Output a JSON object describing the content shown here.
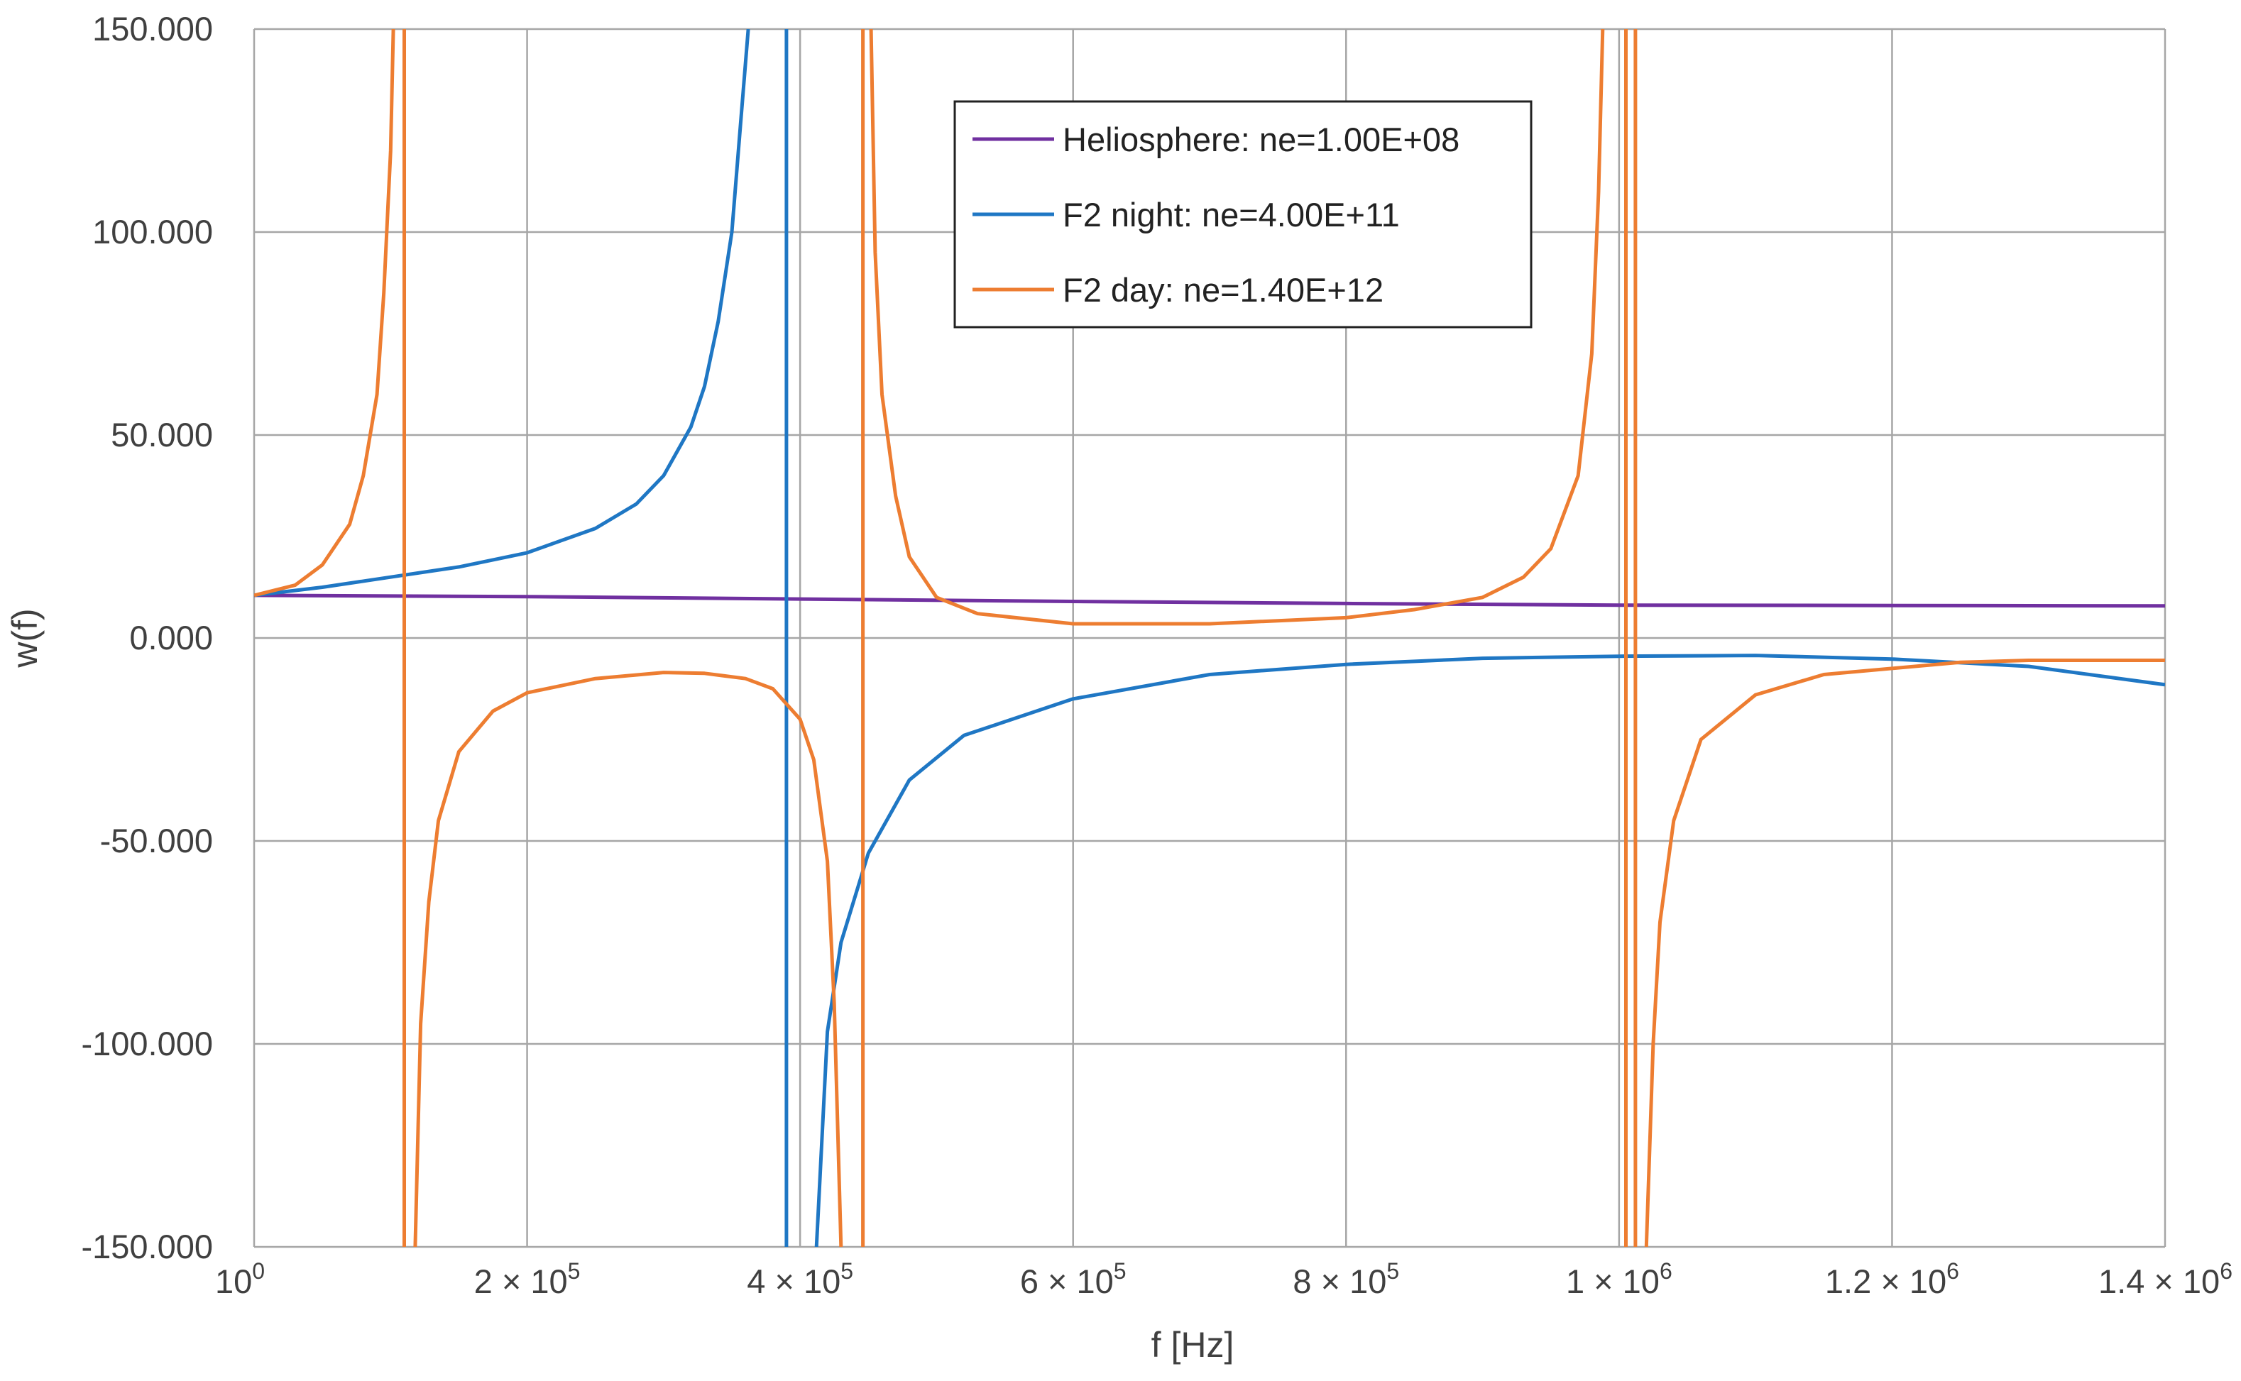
{
  "chart_data": {
    "type": "line",
    "title": "",
    "xlabel": "f [Hz]",
    "ylabel": "w(f)",
    "xlim": [
      1,
      1400000
    ],
    "ylim": [
      -150,
      150
    ],
    "grid": true,
    "legend_position": "top-center",
    "x_tick_labels": [
      {
        "value": 1,
        "base": "10",
        "exp": "0"
      },
      {
        "value": 200000,
        "base": "2 × 10",
        "exp": "5"
      },
      {
        "value": 400000,
        "base": "4 × 10",
        "exp": "5"
      },
      {
        "value": 600000,
        "base": "6 × 10",
        "exp": "5"
      },
      {
        "value": 800000,
        "base": "8 × 10",
        "exp": "5"
      },
      {
        "value": 1000000,
        "base": "1 × 10",
        "exp": "6"
      },
      {
        "value": 1200000,
        "base": "1.2 × 10",
        "exp": "6"
      },
      {
        "value": 1400000,
        "base": "1.4 × 10",
        "exp": "6"
      }
    ],
    "y_tick_labels": [
      {
        "value": 150,
        "label": "150.000"
      },
      {
        "value": 100,
        "label": "100.000"
      },
      {
        "value": 50,
        "label": "50.000"
      },
      {
        "value": 0,
        "label": "0.000"
      },
      {
        "value": -50,
        "label": "-50.000"
      },
      {
        "value": -100,
        "label": "-100.000"
      },
      {
        "value": -150,
        "label": "-150.000"
      }
    ],
    "series": [
      {
        "name": "Heliosphere: ne=1.00E+08",
        "color": "#7030a0",
        "segments": [
          [
            [
              1,
              10.5
            ],
            [
              200000,
              10.2
            ],
            [
              400000,
              9.6
            ],
            [
              600000,
              9.0
            ],
            [
              800000,
              8.5
            ],
            [
              1000000,
              8.1
            ],
            [
              1200000,
              8.0
            ],
            [
              1400000,
              7.9
            ]
          ]
        ]
      },
      {
        "name": "F2 night: ne=4.00E+11",
        "color": "#1f77c4",
        "segments": [
          [
            [
              1,
              10.5
            ],
            [
              50000,
              12.5
            ],
            [
              100000,
              15
            ],
            [
              150000,
              17.5
            ],
            [
              200000,
              21
            ],
            [
              250000,
              27
            ],
            [
              280000,
              33
            ],
            [
              300000,
              40
            ],
            [
              320000,
              52
            ],
            [
              330000,
              62
            ],
            [
              340000,
              78
            ],
            [
              350000,
              100
            ],
            [
              356000,
              125
            ],
            [
              362000,
              150
            ]
          ],
          [
            [
              390000,
              150
            ],
            [
              390000,
              -150
            ]
          ],
          [
            [
              412000,
              -150
            ],
            [
              420000,
              -97
            ],
            [
              430000,
              -75
            ],
            [
              450000,
              -53
            ],
            [
              480000,
              -35
            ],
            [
              520000,
              -24
            ],
            [
              600000,
              -15
            ],
            [
              700000,
              -9
            ],
            [
              800000,
              -6.5
            ],
            [
              900000,
              -5
            ],
            [
              1000000,
              -4.5
            ],
            [
              1100000,
              -4.3
            ],
            [
              1200000,
              -5.2
            ],
            [
              1300000,
              -7
            ],
            [
              1400000,
              -11.5
            ]
          ]
        ]
      },
      {
        "name": "F2 day: ne=1.40E+12",
        "color": "#ed7d31",
        "segments": [
          [
            [
              1,
              10.5
            ],
            [
              30000,
              13
            ],
            [
              50000,
              18
            ],
            [
              70000,
              28
            ],
            [
              80000,
              40
            ],
            [
              90000,
              60
            ],
            [
              95000,
              85
            ],
            [
              100000,
              120
            ],
            [
              102000,
              150
            ]
          ],
          [
            [
              110000,
              150
            ],
            [
              110000,
              -150
            ]
          ],
          [
            [
              118000,
              -150
            ],
            [
              122000,
              -95
            ],
            [
              128000,
              -65
            ],
            [
              135000,
              -45
            ],
            [
              150000,
              -28
            ],
            [
              175000,
              -18
            ],
            [
              200000,
              -13.5
            ],
            [
              250000,
              -10
            ],
            [
              300000,
              -8.5
            ],
            [
              330000,
              -8.7
            ],
            [
              360000,
              -10
            ],
            [
              380000,
              -12.5
            ],
            [
              400000,
              -20
            ],
            [
              410000,
              -30
            ],
            [
              420000,
              -55
            ],
            [
              425000,
              -90
            ],
            [
              430000,
              -150
            ]
          ],
          [
            [
              446000,
              150
            ],
            [
              446000,
              -150
            ]
          ],
          [
            [
              452000,
              150
            ],
            [
              455000,
              95
            ],
            [
              460000,
              60
            ],
            [
              470000,
              35
            ],
            [
              480000,
              20
            ],
            [
              500000,
              10
            ],
            [
              530000,
              6
            ],
            [
              600000,
              3.5
            ],
            [
              700000,
              3.5
            ],
            [
              800000,
              5
            ],
            [
              850000,
              7
            ],
            [
              900000,
              10
            ],
            [
              930000,
              15
            ],
            [
              950000,
              22
            ],
            [
              970000,
              40
            ],
            [
              980000,
              70
            ],
            [
              985000,
              110
            ],
            [
              988000,
              150
            ]
          ],
          [
            [
              1005000,
              150
            ],
            [
              1005000,
              -150
            ]
          ],
          [
            [
              1012000,
              150
            ],
            [
              1012000,
              -150
            ]
          ],
          [
            [
              1020000,
              -150
            ],
            [
              1025000,
              -100
            ],
            [
              1030000,
              -70
            ],
            [
              1040000,
              -45
            ],
            [
              1060000,
              -25
            ],
            [
              1100000,
              -14
            ],
            [
              1150000,
              -9
            ],
            [
              1250000,
              -6
            ],
            [
              1300000,
              -5.5
            ],
            [
              1400000,
              -5.5
            ]
          ]
        ]
      }
    ]
  }
}
